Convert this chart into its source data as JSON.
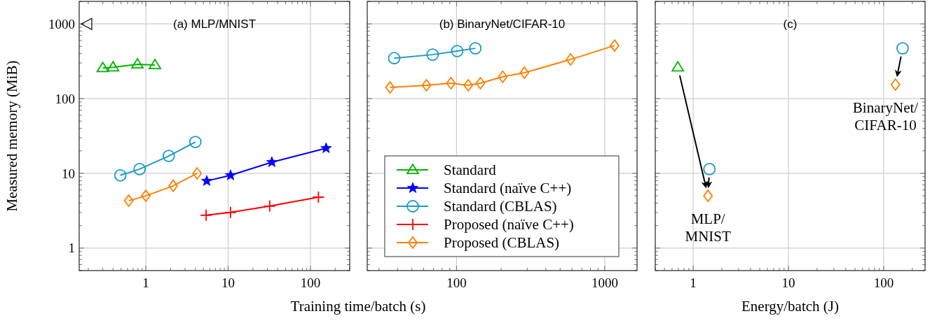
{
  "chart_data": [
    {
      "type": "line",
      "title": "(a) MLP/MNIST",
      "ylabel": "Measured memory (MiB)",
      "xlabel": "Training time/batch (s)",
      "log": "xy",
      "grid": true,
      "xlim": [
        0.155,
        300
      ],
      "xticks": [
        1,
        10,
        100
      ],
      "ylim": [
        0.5,
        2000
      ],
      "yticks": [
        1,
        10,
        100,
        1000
      ],
      "series": [
        {
          "color": "#00b400",
          "marker": "triangle",
          "x": [
            0.3,
            0.4,
            0.79,
            1.29
          ],
          "values": [
            257,
            263,
            288,
            282
          ]
        },
        {
          "color": "#0000ff",
          "marker": "star",
          "x": [
            5.5,
            10.7,
            34,
            155
          ],
          "values": [
            7.9,
            9.4,
            14.1,
            21.7
          ]
        },
        {
          "color": "#1a9bc7",
          "marker": "circle",
          "x": [
            0.49,
            0.84,
            1.9,
            4.0
          ],
          "values": [
            9.4,
            11.4,
            17.1,
            26.3
          ]
        },
        {
          "color": "#ff0000",
          "marker": "cross",
          "x": [
            5.4,
            10.7,
            32,
            125
          ],
          "values": [
            2.75,
            3.0,
            3.64,
            4.8
          ]
        },
        {
          "color": "#ff8000",
          "marker": "diamond",
          "x": [
            0.62,
            1.0,
            2.15,
            4.2
          ],
          "values": [
            4.3,
            5.0,
            6.8,
            10
          ]
        }
      ]
    },
    {
      "type": "line",
      "title": "(b) BinaryNet/CIFAR-10",
      "log": "xy",
      "grid": true,
      "legend": "bottom",
      "tick_labels": "x",
      "xlim": [
        25,
        1650
      ],
      "xticks": [
        100,
        1000
      ],
      "ylim": [
        0.5,
        2000
      ],
      "yticks": [
        1,
        10,
        100,
        1000
      ],
      "series": [
        {
          "name": "Standard",
          "color": "#00b400",
          "marker": "triangle"
        },
        {
          "name": "Standard (naïve C++)",
          "color": "#0000ff",
          "marker": "star"
        },
        {
          "name": "Standard (CBLAS)",
          "color": "#1a9bc7",
          "marker": "circle",
          "x": [
            38,
            69,
            101,
            134
          ],
          "values": [
            348,
            388,
            433,
            471
          ]
        },
        {
          "name": "Proposed (naïve C++)",
          "color": "#ff0000",
          "marker": "cross"
        },
        {
          "name": "Proposed (CBLAS)",
          "color": "#ff8000",
          "marker": "diamond",
          "x": [
            35.6,
            62.7,
            91.7,
            120,
            145,
            205,
            287,
            588,
            1164
          ],
          "values": [
            141,
            151,
            161,
            151,
            161,
            196,
            222,
            334,
            513
          ]
        }
      ]
    },
    {
      "type": "scatter",
      "title": "(c)",
      "xlabel": "Energy/batch (J)",
      "log": "xy",
      "grid": true,
      "tick_labels": "x",
      "xlim": [
        0.4,
        272
      ],
      "xticks": [
        1,
        10,
        100
      ],
      "ylim": [
        0.5,
        2000
      ],
      "yticks": [
        1,
        10,
        100,
        1000
      ],
      "series": [
        {
          "color": "#00b400",
          "marker": "triangle",
          "x": [
            0.69
          ],
          "values": [
            263
          ]
        },
        {
          "color": "#1a9bc7",
          "marker": "circle",
          "x": [
            1.48,
            158
          ],
          "values": [
            11.4,
            471
          ]
        },
        {
          "color": "#ff8000",
          "marker": "diamond",
          "x": [
            1.43,
            133
          ],
          "values": [
            5.0,
            154
          ]
        }
      ],
      "annotations": [
        {
          "text": "MLP/\nMNIST",
          "x": 1.43,
          "y": 5.0
        },
        {
          "text": "BinaryNet/\nCIFAR-10",
          "x": 133,
          "y": 154
        }
      ]
    }
  ]
}
